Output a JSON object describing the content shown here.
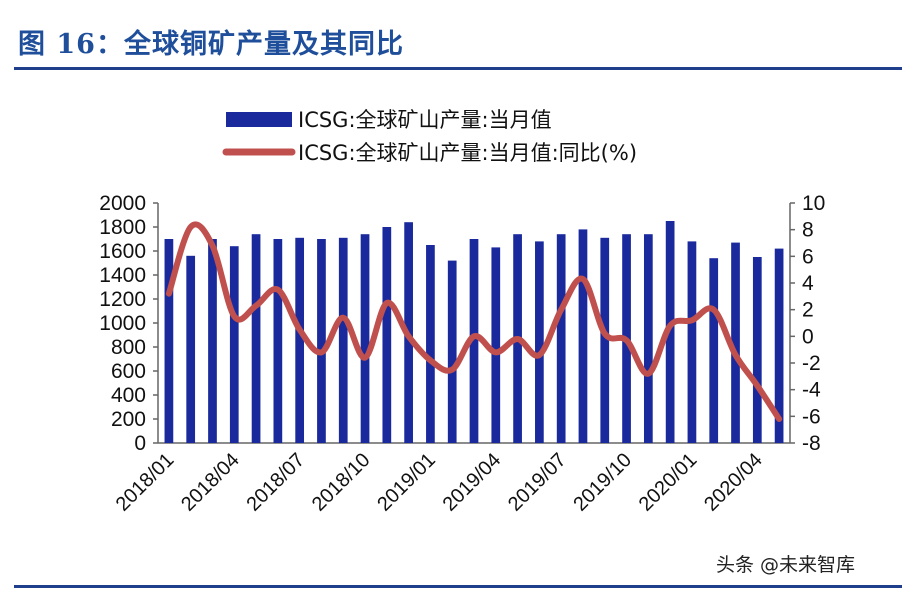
{
  "figure": {
    "title": "图 16：全球铜矿产量及其同比",
    "watermark": "头条 @未来智库"
  },
  "chart_data": {
    "type": "bar+line",
    "colors": {
      "bar": "#1a2a9c",
      "line": "#c0504d",
      "axis": "#666666"
    },
    "legend": {
      "placement": "top-center",
      "entries": [
        "ICSG:全球矿山产量:当月值",
        "ICSG:全球矿山产量:当月值:同比(%)"
      ]
    },
    "x": {
      "categories": [
        "2018/01",
        "2018/02",
        "2018/03",
        "2018/04",
        "2018/05",
        "2018/06",
        "2018/07",
        "2018/08",
        "2018/09",
        "2018/10",
        "2018/11",
        "2018/12",
        "2019/01",
        "2019/02",
        "2019/03",
        "2019/04",
        "2019/05",
        "2019/06",
        "2019/07",
        "2019/08",
        "2019/09",
        "2019/10",
        "2019/11",
        "2019/12",
        "2020/01",
        "2020/02",
        "2020/03",
        "2020/04",
        "2020/05"
      ],
      "tick_labels": [
        "2018/01",
        "2018/04",
        "2018/07",
        "2018/10",
        "2019/01",
        "2019/04",
        "2019/07",
        "2019/10",
        "2020/01",
        "2020/04"
      ]
    },
    "y_left": {
      "ylim": [
        0,
        2000
      ],
      "ticks": [
        0,
        200,
        400,
        600,
        800,
        1000,
        1200,
        1400,
        1600,
        1800,
        2000
      ]
    },
    "y_right": {
      "ylim": [
        -8,
        10
      ],
      "ticks": [
        -8,
        -6,
        -4,
        -2,
        0,
        2,
        4,
        6,
        8,
        10
      ]
    },
    "series": [
      {
        "name": "ICSG:全球矿山产量:当月值",
        "axis": "left",
        "type": "bar",
        "values": [
          1700,
          1560,
          1700,
          1640,
          1740,
          1700,
          1710,
          1700,
          1710,
          1740,
          1800,
          1840,
          1650,
          1520,
          1700,
          1630,
          1740,
          1680,
          1740,
          1780,
          1710,
          1740,
          1740,
          1850,
          1680,
          1540,
          1670,
          1550,
          1620
        ]
      },
      {
        "name": "ICSG:全球矿山产量:当月值:同比(%)",
        "axis": "right",
        "type": "line",
        "values": [
          3.2,
          8.2,
          6.8,
          1.5,
          2.3,
          3.5,
          0.5,
          -1.2,
          1.4,
          -1.6,
          2.5,
          0.0,
          -1.8,
          -2.5,
          0.0,
          -1.2,
          -0.2,
          -1.4,
          2.0,
          4.3,
          0.2,
          -0.3,
          -2.8,
          0.8,
          1.2,
          2.0,
          -1.4,
          -3.7,
          -6.2
        ]
      }
    ]
  }
}
